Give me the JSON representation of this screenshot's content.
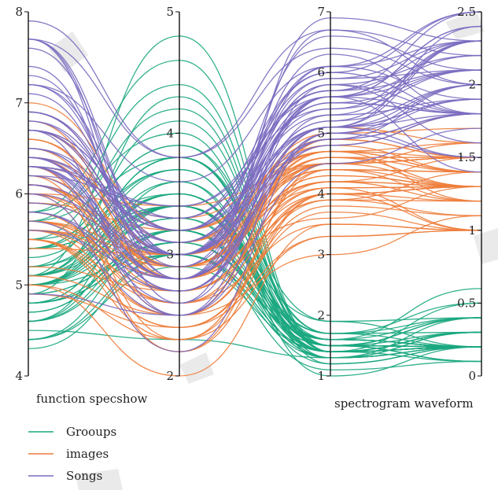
{
  "chart_data": {
    "type": "parallel-coordinates",
    "axes": [
      {
        "name": "function",
        "range": [
          4,
          8
        ],
        "ticks": [
          4,
          5,
          6,
          7,
          8
        ]
      },
      {
        "name": "specshow",
        "range": [
          2,
          5
        ],
        "ticks": [
          2,
          3,
          4,
          5
        ]
      },
      {
        "name": "spectrogram",
        "range": [
          1,
          7
        ],
        "ticks": [
          1,
          2,
          3,
          4,
          5,
          6,
          7
        ]
      },
      {
        "name": "waveform",
        "range": [
          0,
          2.5
        ],
        "ticks": [
          0,
          0.5,
          1,
          1.5,
          2,
          2.5
        ]
      }
    ],
    "axis_titles": [
      {
        "text": "function specshow",
        "axis": 0
      },
      {
        "text": "spectrogram waveform",
        "axis": 2
      }
    ],
    "legend": {
      "placement": "bottom-left"
    },
    "series": [
      {
        "name": "Grooups",
        "color": "#1aa77f",
        "values": [
          [
            5.1,
            4.8,
            1.4,
            0.2
          ],
          [
            4.9,
            4.3,
            1.4,
            0.2
          ],
          [
            4.7,
            3.2,
            1.3,
            0.2
          ],
          [
            4.6,
            3.1,
            1.5,
            0.2
          ],
          [
            5.0,
            3.6,
            1.4,
            0.2
          ],
          [
            5.4,
            3.9,
            1.7,
            0.4
          ],
          [
            4.6,
            3.4,
            1.4,
            0.3
          ],
          [
            5.0,
            3.4,
            1.5,
            0.2
          ],
          [
            4.4,
            2.9,
            1.4,
            0.2
          ],
          [
            4.9,
            3.1,
            1.5,
            0.1
          ],
          [
            5.4,
            3.7,
            1.5,
            0.2
          ],
          [
            4.8,
            3.4,
            1.6,
            0.2
          ],
          [
            4.8,
            3.0,
            1.4,
            0.1
          ],
          [
            4.3,
            3.0,
            1.1,
            0.1
          ],
          [
            5.8,
            4.0,
            1.2,
            0.2
          ],
          [
            5.7,
            4.4,
            1.5,
            0.4
          ],
          [
            5.4,
            3.9,
            1.3,
            0.4
          ],
          [
            5.1,
            3.5,
            1.4,
            0.3
          ],
          [
            5.7,
            3.8,
            1.7,
            0.3
          ],
          [
            5.1,
            3.8,
            1.5,
            0.3
          ],
          [
            5.4,
            3.4,
            1.7,
            0.2
          ],
          [
            5.1,
            3.7,
            1.5,
            0.4
          ],
          [
            4.6,
            3.6,
            1.0,
            0.2
          ],
          [
            5.1,
            3.3,
            1.7,
            0.5
          ],
          [
            4.8,
            3.4,
            1.9,
            0.2
          ],
          [
            5.0,
            3.0,
            1.6,
            0.2
          ],
          [
            5.0,
            3.4,
            1.6,
            0.4
          ],
          [
            5.2,
            3.5,
            1.5,
            0.2
          ],
          [
            5.2,
            3.4,
            1.4,
            0.2
          ],
          [
            4.7,
            3.2,
            1.6,
            0.2
          ],
          [
            4.8,
            3.1,
            1.6,
            0.2
          ],
          [
            5.4,
            3.4,
            1.5,
            0.4
          ],
          [
            5.2,
            4.1,
            1.5,
            0.1
          ],
          [
            5.5,
            4.2,
            1.4,
            0.2
          ],
          [
            4.9,
            3.1,
            1.5,
            0.2
          ],
          [
            5.0,
            3.2,
            1.2,
            0.2
          ],
          [
            5.5,
            3.5,
            1.3,
            0.2
          ],
          [
            4.4,
            3.0,
            1.3,
            0.2
          ],
          [
            5.1,
            3.4,
            1.5,
            0.2
          ],
          [
            5.0,
            3.5,
            1.3,
            0.3
          ],
          [
            4.5,
            2.3,
            1.3,
            0.3
          ],
          [
            4.4,
            3.2,
            1.3,
            0.2
          ],
          [
            5.0,
            3.5,
            1.6,
            0.6
          ],
          [
            5.1,
            3.8,
            1.9,
            0.4
          ],
          [
            4.8,
            3.0,
            1.4,
            0.3
          ],
          [
            5.1,
            3.8,
            1.6,
            0.2
          ],
          [
            4.6,
            3.2,
            1.4,
            0.2
          ],
          [
            5.3,
            3.7,
            1.5,
            0.2
          ],
          [
            5.0,
            3.3,
            1.4,
            0.2
          ],
          [
            5.8,
            4.6,
            1.4,
            0.5
          ]
        ]
      },
      {
        "name": "images",
        "color": "#ee7d3b",
        "values": [
          [
            7.0,
            3.2,
            4.7,
            1.4
          ],
          [
            6.4,
            3.2,
            4.5,
            1.5
          ],
          [
            6.9,
            3.1,
            4.9,
            1.5
          ],
          [
            5.5,
            2.3,
            4.0,
            1.3
          ],
          [
            6.5,
            2.8,
            4.6,
            1.5
          ],
          [
            5.7,
            2.8,
            4.5,
            1.3
          ],
          [
            6.3,
            3.3,
            4.7,
            1.6
          ],
          [
            4.9,
            2.4,
            3.3,
            1.0
          ],
          [
            6.6,
            2.9,
            4.6,
            1.3
          ],
          [
            5.2,
            2.7,
            3.9,
            1.4
          ],
          [
            5.0,
            2.0,
            3.5,
            1.0
          ],
          [
            5.9,
            3.0,
            4.2,
            1.5
          ],
          [
            6.0,
            2.2,
            4.0,
            1.0
          ],
          [
            6.1,
            2.9,
            4.7,
            1.4
          ],
          [
            5.6,
            2.9,
            3.6,
            1.3
          ],
          [
            6.7,
            3.1,
            4.4,
            1.4
          ],
          [
            5.6,
            3.0,
            4.5,
            1.5
          ],
          [
            5.8,
            2.7,
            4.1,
            1.0
          ],
          [
            6.2,
            2.2,
            4.5,
            1.5
          ],
          [
            5.6,
            2.5,
            3.9,
            1.1
          ],
          [
            5.9,
            3.2,
            4.8,
            1.8
          ],
          [
            6.1,
            2.8,
            4.0,
            1.3
          ],
          [
            6.3,
            2.5,
            4.9,
            1.5
          ],
          [
            6.1,
            2.8,
            4.7,
            1.2
          ],
          [
            6.4,
            2.9,
            4.3,
            1.3
          ],
          [
            6.6,
            3.0,
            4.4,
            1.4
          ],
          [
            6.8,
            2.8,
            4.8,
            1.4
          ],
          [
            6.7,
            3.0,
            5.0,
            1.7
          ],
          [
            6.0,
            2.9,
            4.5,
            1.5
          ],
          [
            5.7,
            2.6,
            3.5,
            1.0
          ],
          [
            5.5,
            2.4,
            3.8,
            1.1
          ],
          [
            5.5,
            2.4,
            3.7,
            1.0
          ],
          [
            5.8,
            2.7,
            3.9,
            1.2
          ],
          [
            6.0,
            2.7,
            5.1,
            1.6
          ],
          [
            5.4,
            3.0,
            4.5,
            1.5
          ],
          [
            6.0,
            3.4,
            4.5,
            1.6
          ],
          [
            6.7,
            3.1,
            4.7,
            1.5
          ],
          [
            6.3,
            2.3,
            4.4,
            1.3
          ],
          [
            5.6,
            3.0,
            4.1,
            1.3
          ],
          [
            5.5,
            2.5,
            4.0,
            1.3
          ],
          [
            5.5,
            2.6,
            4.4,
            1.2
          ],
          [
            6.1,
            3.0,
            4.6,
            1.4
          ],
          [
            5.8,
            2.6,
            4.0,
            1.2
          ],
          [
            5.0,
            2.3,
            3.3,
            1.0
          ],
          [
            5.6,
            2.7,
            4.2,
            1.3
          ],
          [
            5.7,
            3.0,
            4.2,
            1.2
          ],
          [
            5.7,
            2.9,
            4.2,
            1.3
          ],
          [
            6.2,
            2.9,
            4.3,
            1.3
          ],
          [
            5.1,
            2.5,
            3.0,
            1.1
          ],
          [
            5.7,
            2.8,
            4.1,
            1.3
          ]
        ]
      },
      {
        "name": "Songs",
        "color": "#7b6cc0",
        "values": [
          [
            6.3,
            3.3,
            6.0,
            2.5
          ],
          [
            5.8,
            2.7,
            5.1,
            1.9
          ],
          [
            7.1,
            3.0,
            5.9,
            2.1
          ],
          [
            6.3,
            2.9,
            5.6,
            1.8
          ],
          [
            6.5,
            3.0,
            5.8,
            2.2
          ],
          [
            7.6,
            3.0,
            6.6,
            2.1
          ],
          [
            4.9,
            2.5,
            4.5,
            1.7
          ],
          [
            7.3,
            2.9,
            6.3,
            1.8
          ],
          [
            6.7,
            2.5,
            5.8,
            1.8
          ],
          [
            7.2,
            3.6,
            6.1,
            2.5
          ],
          [
            6.5,
            3.2,
            5.1,
            2.0
          ],
          [
            6.4,
            2.7,
            5.3,
            1.9
          ],
          [
            6.8,
            3.0,
            5.5,
            2.1
          ],
          [
            5.7,
            2.5,
            5.0,
            2.0
          ],
          [
            5.8,
            2.8,
            5.1,
            2.4
          ],
          [
            6.4,
            3.2,
            5.3,
            2.3
          ],
          [
            6.5,
            3.0,
            5.5,
            1.8
          ],
          [
            7.7,
            3.8,
            6.7,
            2.2
          ],
          [
            7.7,
            2.6,
            6.9,
            2.3
          ],
          [
            6.0,
            2.2,
            5.0,
            1.5
          ],
          [
            6.9,
            3.2,
            5.7,
            2.3
          ],
          [
            5.6,
            2.8,
            4.9,
            2.0
          ],
          [
            7.7,
            2.8,
            6.7,
            2.0
          ],
          [
            6.3,
            2.7,
            4.9,
            1.8
          ],
          [
            6.7,
            3.3,
            5.7,
            2.1
          ],
          [
            7.2,
            3.2,
            6.0,
            1.8
          ],
          [
            6.2,
            2.8,
            4.8,
            1.8
          ],
          [
            6.1,
            3.0,
            4.9,
            1.8
          ],
          [
            6.4,
            2.8,
            5.6,
            2.1
          ],
          [
            7.2,
            3.0,
            5.8,
            1.6
          ],
          [
            7.4,
            2.8,
            6.1,
            1.9
          ],
          [
            7.9,
            3.8,
            6.4,
            2.0
          ],
          [
            6.4,
            2.8,
            5.6,
            2.2
          ],
          [
            6.3,
            2.8,
            5.1,
            1.5
          ],
          [
            6.1,
            2.6,
            5.6,
            1.4
          ],
          [
            7.7,
            3.0,
            6.1,
            2.3
          ],
          [
            6.3,
            3.4,
            5.6,
            2.4
          ],
          [
            6.4,
            3.1,
            5.5,
            1.8
          ],
          [
            6.0,
            3.0,
            4.8,
            1.8
          ],
          [
            6.9,
            3.1,
            5.4,
            2.1
          ],
          [
            6.7,
            3.1,
            5.6,
            2.4
          ],
          [
            6.9,
            3.1,
            5.1,
            2.3
          ],
          [
            5.8,
            2.7,
            5.1,
            1.9
          ],
          [
            6.8,
            3.2,
            5.9,
            2.3
          ],
          [
            6.7,
            3.3,
            5.7,
            2.5
          ],
          [
            6.7,
            3.0,
            5.2,
            2.3
          ],
          [
            6.3,
            2.5,
            5.0,
            1.9
          ],
          [
            6.5,
            3.0,
            5.2,
            2.0
          ],
          [
            6.2,
            3.4,
            5.4,
            2.3
          ],
          [
            5.9,
            3.0,
            5.1,
            1.8
          ]
        ]
      }
    ]
  }
}
